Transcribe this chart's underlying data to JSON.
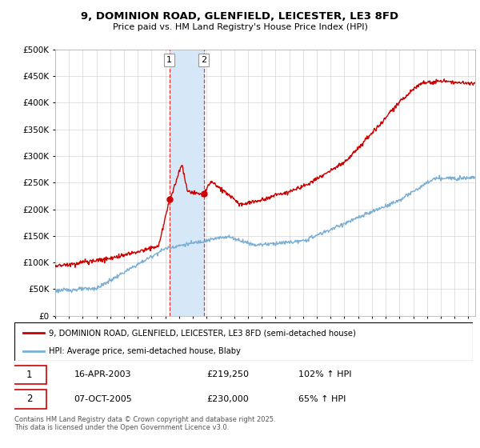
{
  "title": "9, DOMINION ROAD, GLENFIELD, LEICESTER, LE3 8FD",
  "subtitle": "Price paid vs. HM Land Registry's House Price Index (HPI)",
  "legend_label_red": "9, DOMINION ROAD, GLENFIELD, LEICESTER, LE3 8FD (semi-detached house)",
  "legend_label_blue": "HPI: Average price, semi-detached house, Blaby",
  "footer": "Contains HM Land Registry data © Crown copyright and database right 2025.\nThis data is licensed under the Open Government Licence v3.0.",
  "transaction1_date": "16-APR-2003",
  "transaction1_price": "£219,250",
  "transaction1_hpi": "102% ↑ HPI",
  "transaction2_date": "07-OCT-2005",
  "transaction2_price": "£230,000",
  "transaction2_hpi": "65% ↑ HPI",
  "t1_x": 2003.29,
  "t2_x": 2005.79,
  "t1_y": 219250,
  "t2_y": 230000,
  "ylim": [
    0,
    500000
  ],
  "xlim": [
    1995,
    2025.5
  ],
  "red_color": "#cc0000",
  "blue_color": "#7bafd4",
  "shading_color": "#d6e8f7",
  "vline_color": "#ee3333",
  "grid_color": "#cccccc",
  "label_box_color": "#dddddd"
}
